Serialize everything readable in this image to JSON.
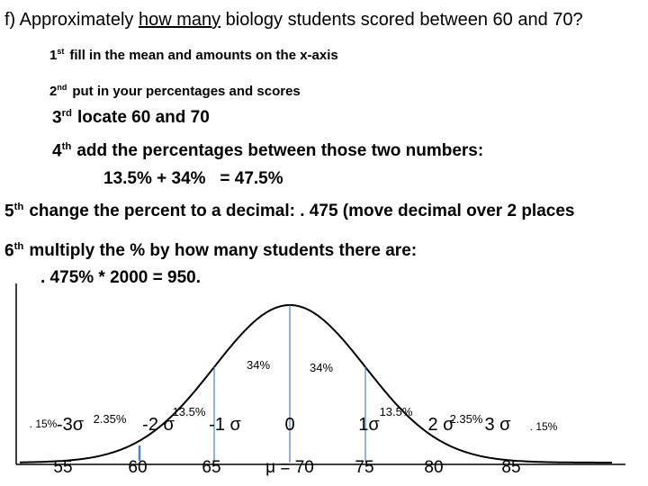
{
  "question": {
    "prefix": "f) Approximately",
    "emphasis": "how many",
    "suffix": "biology students scored between 60 and 70?"
  },
  "steps": [
    {
      "num": "1",
      "sup": "st",
      "text": "fill in the mean and amounts on the x-axis"
    },
    {
      "num": "2",
      "sup": "nd",
      "text": "put in your percentages and scores"
    },
    {
      "num": "3",
      "sup": "rd",
      "text": "locate 60 and 70"
    },
    {
      "num": "4",
      "sup": "th",
      "text": "add the percentages between those two numbers:",
      "detail": "13.5% + 34%   = 47.5%"
    },
    {
      "num": "5",
      "sup": "th",
      "text": "change the percent to a decimal: . 475 (move decimal over 2 places"
    },
    {
      "num": "6",
      "sup": "th",
      "text": "multiply the % by how many students there are:",
      "detail": ". 475% * 2000 = 950."
    }
  ],
  "curve": {
    "percentages": [
      "34%",
      "34%",
      "13.5%",
      "13.5%",
      "2.35%",
      "2.35%",
      ". 15%",
      ". 15%"
    ],
    "sigmas": [
      "-3σ",
      "-2 σ",
      "-1 σ",
      "0",
      "1σ",
      "2 σ",
      "3 σ"
    ],
    "scores": [
      "55",
      "60",
      "65",
      "μ = 70",
      "75",
      "80",
      "85"
    ]
  }
}
